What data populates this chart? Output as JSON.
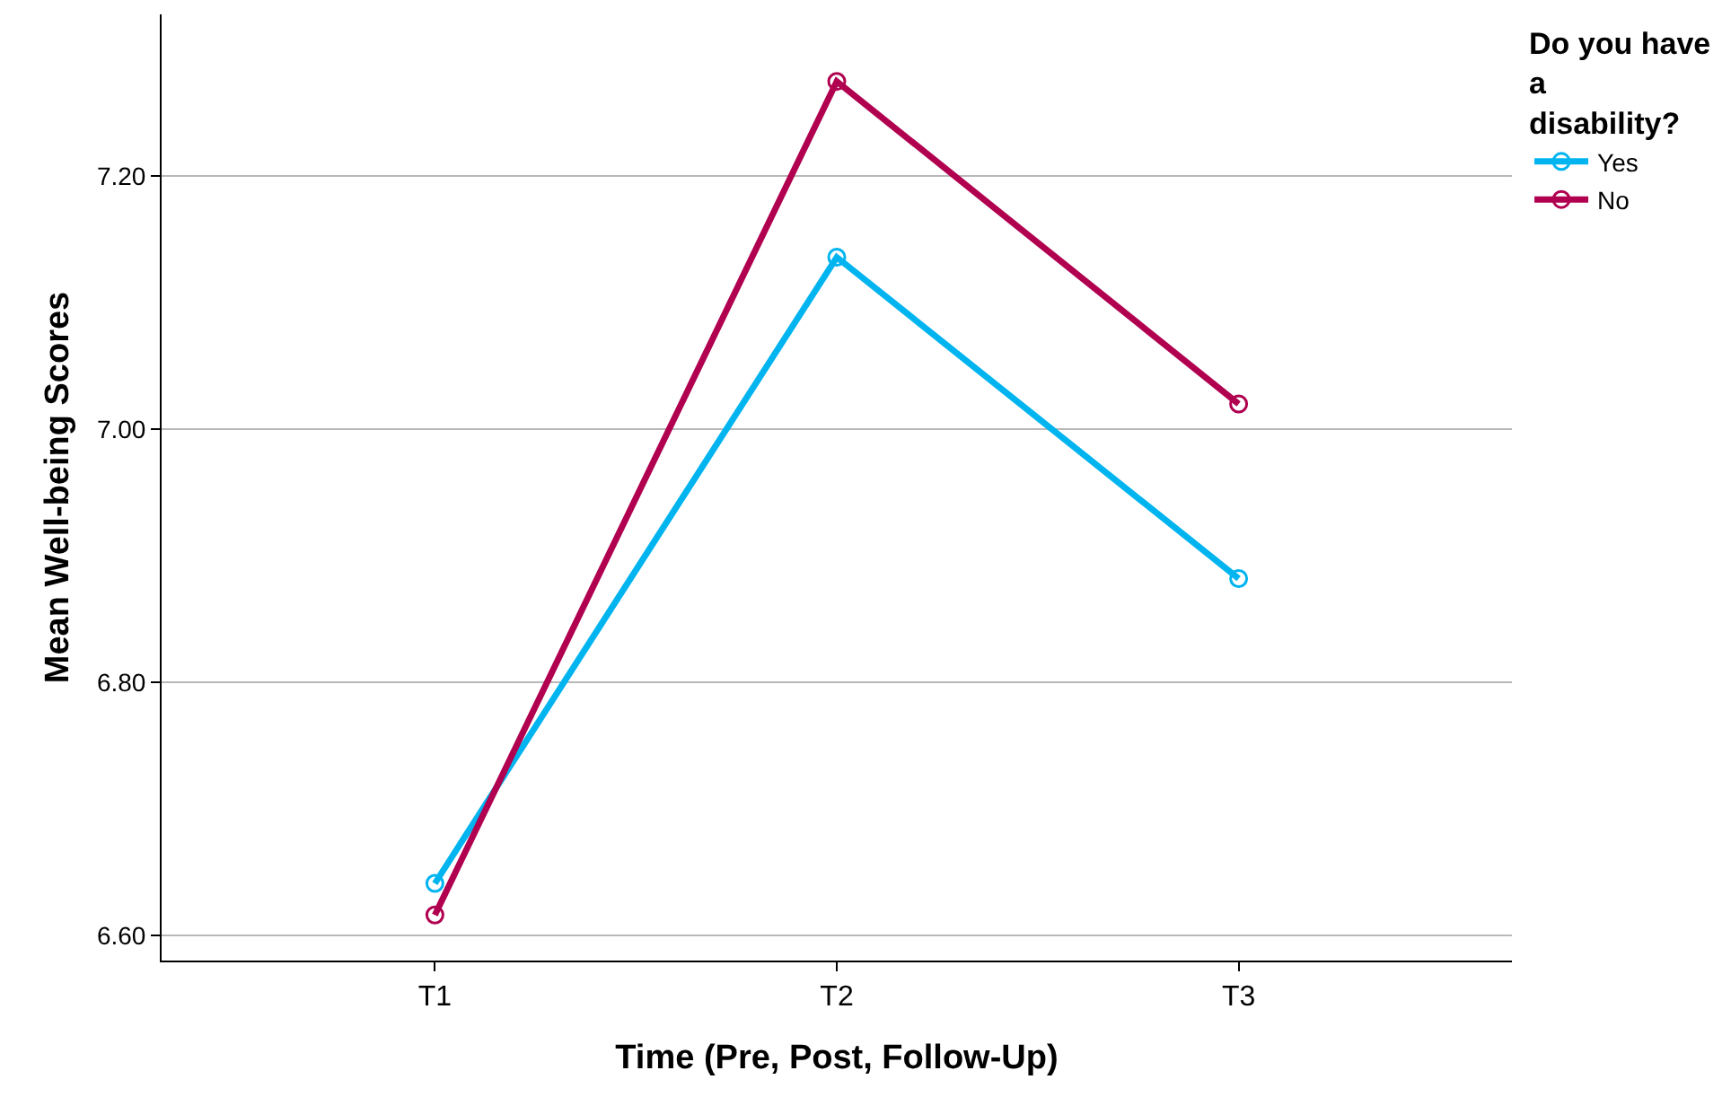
{
  "chart_data": {
    "type": "line",
    "xlabel": "Time (Pre, Post, Follow-Up)",
    "ylabel": "Mean Well-being Scores",
    "legend_title": "Do you have a disability?",
    "categories": [
      "T1",
      "T2",
      "T3"
    ],
    "series": [
      {
        "name": "Yes",
        "color": "#00b4f0",
        "values": [
          6.641,
          7.136,
          6.882
        ]
      },
      {
        "name": "No",
        "color": "#b0004f",
        "values": [
          6.616,
          7.275,
          7.02
        ]
      }
    ],
    "ylim": [
      6.58,
      7.328
    ],
    "yticks": [
      {
        "value": 6.6,
        "label": "6.60"
      },
      {
        "value": 6.8,
        "label": "6.80"
      },
      {
        "value": 7.0,
        "label": "7.00"
      },
      {
        "value": 7.2,
        "label": "7.20"
      }
    ],
    "grid": "y",
    "legend": "right",
    "marker": "circle",
    "line_style": "solid"
  }
}
